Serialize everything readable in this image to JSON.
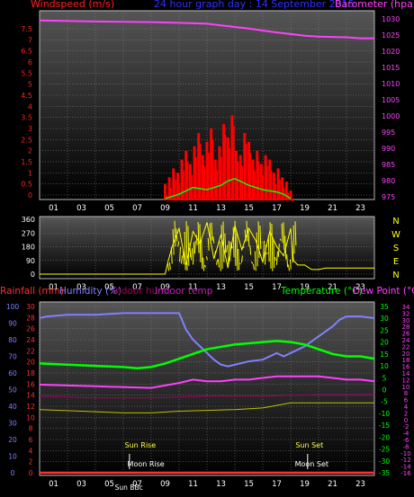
{
  "header": {
    "left_label": "Windspeed (m/s)",
    "title": "24 hour graph day : 14 September 2015",
    "right_label": "Barometer (hpa)"
  },
  "colors": {
    "wind_label": "#ff2020",
    "title": "#3030ff",
    "baro": "#ff40ff",
    "wind_bar": "#ff0000",
    "gust": "#ffffff",
    "avg": "#00ff00",
    "direction": "#ffff00",
    "compass": "#ffff00",
    "rain": "#ff3030",
    "humidity": "#8080ff",
    "indoor_hum": "#a00060",
    "indoor_temp": "#c020c0",
    "temperature": "#00ff00",
    "dew": "#ff40ff",
    "indoor_temp_line": "#c0c000",
    "sun": "#ffff40",
    "panel_top": "#555555",
    "panel_bottom": "#000000"
  },
  "hour_labels": [
    "01",
    "03",
    "05",
    "07",
    "09",
    "11",
    "13",
    "15",
    "17",
    "19",
    "21",
    "23"
  ],
  "panel1": {
    "wind_ticks": [
      "7.5",
      "7",
      "6.5",
      "6",
      "5.5",
      "5",
      "4.5",
      "4",
      "3.5",
      "3",
      "2.5",
      "2",
      "1.5",
      "1",
      "0.5",
      "0"
    ],
    "baro_ticks": [
      "1030",
      "1025",
      "1020",
      "1015",
      "1010",
      "1005",
      "1000",
      "995",
      "990",
      "985",
      "980",
      "975"
    ]
  },
  "panel2": {
    "dir_ticks": [
      "360",
      "270",
      "180",
      "90",
      "0"
    ],
    "compass": [
      "N",
      "W",
      "S",
      "E",
      "N"
    ]
  },
  "panel3": {
    "legend": {
      "rain": "Rainfall (mm)",
      "humidity": "Humidity (%)",
      "indoor_hum": "Indoor hum",
      "indoor_temp": "Indoor temp",
      "temperature": "Temperature (°C)",
      "dew": "Dew Point (°C)"
    },
    "humidity_ticks": [
      "100",
      "90",
      "80",
      "70",
      "60",
      "50",
      "40",
      "30",
      "20",
      "10",
      "0"
    ],
    "rain_ticks": [
      "30",
      "28",
      "26",
      "24",
      "22",
      "20",
      "18",
      "16",
      "14",
      "12",
      "10",
      "8",
      "6",
      "4",
      "2",
      "0"
    ],
    "temp_ticks": [
      "35",
      "30",
      "25",
      "20",
      "15",
      "10",
      "5",
      "0",
      "-5",
      "-10",
      "-15",
      "-20",
      "-25",
      "-30",
      "-35"
    ],
    "dew_ticks": [
      "34",
      "32",
      "30",
      "28",
      "26",
      "24",
      "22",
      "20",
      "18",
      "16",
      "14",
      "12",
      "10",
      "8",
      "6",
      "4",
      "2",
      "0",
      "-2",
      "-4",
      "-6",
      "-8",
      "-10",
      "-12",
      "-14",
      "-16"
    ],
    "events": {
      "sun_rise": "Sun Rise",
      "sun_set": "Sun Set",
      "moon_rise": "Moon Rise",
      "moon_set": "Moon Set",
      "sun_bbc": "Sun BBc"
    }
  },
  "chart_data": [
    {
      "type": "line",
      "xlabel": "",
      "x_range_hours": [
        0,
        24
      ],
      "series": [
        {
          "name": "Windspeed (m/s)",
          "kind": "bar",
          "axis": "left",
          "ylim": [
            0,
            7.5
          ],
          "x": [
            9.0,
            9.3,
            9.6,
            9.9,
            10.2,
            10.5,
            10.8,
            11.1,
            11.4,
            11.7,
            12.0,
            12.3,
            12.6,
            12.9,
            13.2,
            13.5,
            13.8,
            14.1,
            14.4,
            14.7,
            15.0,
            15.3,
            15.6,
            15.9,
            16.2,
            16.5,
            16.8,
            17.1,
            17.4,
            17.7,
            18.0
          ],
          "y": [
            0.5,
            0.8,
            1.2,
            1.0,
            1.6,
            2.0,
            1.4,
            2.2,
            2.8,
            1.8,
            2.4,
            3.0,
            1.6,
            2.2,
            3.2,
            2.6,
            3.6,
            2.0,
            1.8,
            2.8,
            2.4,
            1.6,
            2.0,
            1.4,
            1.8,
            1.6,
            1.0,
            1.2,
            0.8,
            0.6,
            0.2
          ]
        },
        {
          "name": "Average",
          "kind": "line",
          "axis": "left",
          "ylim": [
            0,
            7.5
          ],
          "x": [
            9.0,
            10.0,
            11.0,
            12.0,
            13.0,
            13.5,
            14.0,
            15.0,
            16.0,
            17.0,
            17.5,
            18.0
          ],
          "y": [
            0.0,
            0.2,
            0.5,
            0.4,
            0.6,
            0.8,
            0.9,
            0.6,
            0.4,
            0.3,
            0.2,
            0.0
          ]
        },
        {
          "name": "Barometer (hpa)",
          "kind": "line",
          "axis": "right",
          "ylim": [
            975,
            1032.5
          ],
          "x": [
            0,
            4,
            8,
            10,
            12,
            13,
            14,
            15,
            16,
            17,
            18,
            19,
            20,
            22,
            23,
            24
          ],
          "y": [
            1029.5,
            1029.2,
            1029.0,
            1028.8,
            1028.5,
            1028.0,
            1027.5,
            1027.0,
            1026.4,
            1025.8,
            1025.3,
            1024.8,
            1024.5,
            1024.3,
            1024.0,
            1024.0
          ]
        }
      ]
    },
    {
      "type": "line",
      "xlabel": "",
      "ylim": [
        0,
        360
      ],
      "series": [
        {
          "name": "Wind direction",
          "x": [
            0,
            9.0,
            9.2,
            9.5,
            10,
            10.5,
            11,
            11.5,
            12,
            12.5,
            13,
            13.5,
            14,
            14.5,
            15,
            15.5,
            16,
            16.5,
            17,
            17.5,
            18,
            18.2,
            18.5,
            19,
            19.5,
            20,
            20.5,
            21,
            22,
            23,
            24
          ],
          "y": [
            0,
            0,
            80,
            180,
            300,
            60,
            280,
            200,
            340,
            100,
            260,
            40,
            320,
            160,
            300,
            220,
            80,
            280,
            180,
            120,
            300,
            90,
            60,
            60,
            30,
            30,
            40,
            40,
            40,
            40,
            40
          ]
        }
      ]
    },
    {
      "type": "line",
      "xlabel": "",
      "series": [
        {
          "name": "Humidity (%)",
          "axis": "humidity",
          "ylim": [
            0,
            100
          ],
          "x": [
            0,
            0.5,
            2,
            4,
            6,
            8,
            10,
            10.2,
            10.5,
            11,
            11.5,
            12,
            12.5,
            13,
            13.5,
            14,
            15,
            16,
            17,
            17.5,
            18,
            19,
            20,
            21,
            21.5,
            22,
            23,
            24
          ],
          "y": [
            93,
            94,
            95,
            95,
            96,
            96,
            96,
            92,
            86,
            80,
            76,
            72,
            68,
            65,
            64,
            65,
            67,
            68,
            72,
            70,
            72,
            76,
            82,
            88,
            92,
            94,
            94,
            93
          ]
        },
        {
          "name": "Temperature (°C)",
          "axis": "temp",
          "ylim": [
            -35,
            35
          ],
          "x": [
            0,
            2,
            4,
            6,
            7,
            8,
            9,
            10,
            11,
            12,
            13,
            14,
            15,
            16,
            17,
            18,
            19,
            20,
            21,
            22,
            23,
            24
          ],
          "y": [
            11,
            10.5,
            10,
            9.5,
            9,
            9.5,
            11,
            13,
            15,
            17,
            18,
            19,
            19.5,
            20,
            20.5,
            20,
            19,
            17,
            15,
            14,
            14,
            13
          ]
        },
        {
          "name": "Dew Point (°C)",
          "axis": "dew",
          "ylim": [
            -16,
            34
          ],
          "x": [
            0,
            4,
            8,
            10,
            11,
            12,
            13,
            14,
            15,
            16,
            17,
            18,
            19,
            20,
            21,
            22,
            23,
            24
          ],
          "y": [
            10.5,
            10,
            9.5,
            11,
            12,
            11.5,
            11.5,
            12,
            12,
            12.5,
            13,
            13,
            13,
            13,
            12.5,
            12,
            12,
            11.5
          ]
        },
        {
          "name": "Indoor hum",
          "axis": "humidity",
          "ylim": [
            0,
            100
          ],
          "x": [
            0,
            4,
            8,
            12,
            16,
            20,
            24
          ],
          "y": [
            46,
            45,
            45,
            46,
            46,
            47,
            47
          ]
        },
        {
          "name": "Indoor temp",
          "axis": "humidity",
          "ylim": [
            0,
            100
          ],
          "x": [
            0,
            3,
            6,
            8,
            10,
            14,
            16,
            18,
            20,
            24
          ],
          "y": [
            38,
            37,
            36,
            36,
            37,
            38,
            39,
            42,
            42,
            42
          ]
        },
        {
          "name": "Rainfall (mm)",
          "axis": "rain",
          "ylim": [
            0,
            30
          ],
          "x": [
            0,
            24
          ],
          "y": [
            0,
            0
          ]
        }
      ],
      "events_hours": {
        "sun_rise": 6.7,
        "sun_set": 19.6,
        "moon_rise": 7.3,
        "moon_set": 19.7
      }
    }
  ]
}
